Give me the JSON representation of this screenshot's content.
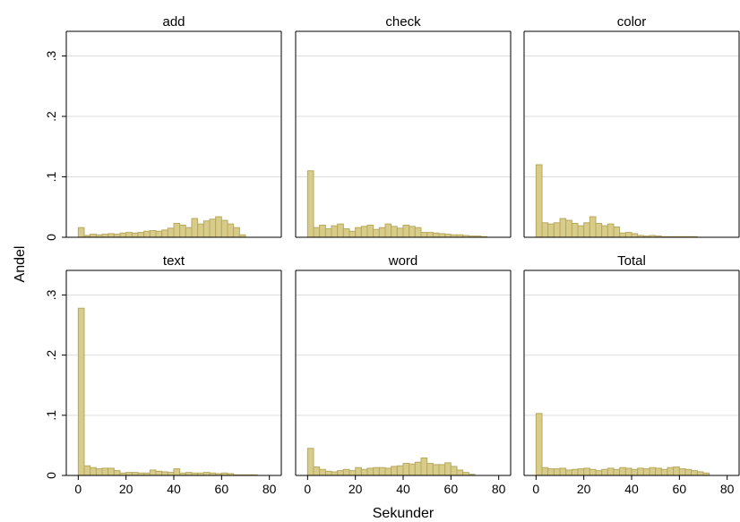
{
  "chart_data": {
    "type": "bar",
    "subtype": "histogram-small-multiples",
    "xlabel": "Sekunder",
    "ylabel": "Andel",
    "xlim": [
      -5,
      85
    ],
    "ylim": [
      0,
      0.32
    ],
    "x_ticks": [
      "0",
      "20",
      "40",
      "60",
      "80"
    ],
    "x_tick_values": [
      0,
      20,
      40,
      60,
      80
    ],
    "y_ticks": [
      "0",
      ".1",
      ".2",
      ".3"
    ],
    "y_tick_values": [
      0,
      0.1,
      0.2,
      0.3
    ],
    "bin_width": 2.5,
    "grid": true,
    "bar_color": "#d8cc8a",
    "bar_edge_color": "#b8a85e",
    "panels": [
      {
        "title": "add",
        "bins_start": 0,
        "values": [
          0.016,
          0.003,
          0.005,
          0.004,
          0.005,
          0.006,
          0.005,
          0.007,
          0.008,
          0.007,
          0.008,
          0.01,
          0.011,
          0.01,
          0.012,
          0.015,
          0.023,
          0.02,
          0.016,
          0.031,
          0.022,
          0.027,
          0.03,
          0.034,
          0.028,
          0.022,
          0.016,
          0.004
        ]
      },
      {
        "title": "check",
        "bins_start": 0,
        "values": [
          0.11,
          0.016,
          0.02,
          0.014,
          0.019,
          0.022,
          0.014,
          0.01,
          0.016,
          0.018,
          0.02,
          0.013,
          0.016,
          0.022,
          0.018,
          0.015,
          0.02,
          0.018,
          0.016,
          0.008,
          0.008,
          0.007,
          0.006,
          0.005,
          0.004,
          0.004,
          0.003,
          0.002,
          0.002,
          0.001
        ]
      },
      {
        "title": "color",
        "bins_start": 0,
        "values": [
          0.12,
          0.024,
          0.022,
          0.024,
          0.031,
          0.028,
          0.023,
          0.019,
          0.024,
          0.034,
          0.023,
          0.019,
          0.022,
          0.017,
          0.007,
          0.008,
          0.006,
          0.003,
          0.002,
          0.003,
          0.002,
          0.001,
          0.001,
          0.001,
          0.001,
          0.001,
          0.001
        ]
      },
      {
        "title": "text",
        "bins_start": 0,
        "values": [
          0.278,
          0.016,
          0.013,
          0.011,
          0.012,
          0.012,
          0.008,
          0.004,
          0.005,
          0.005,
          0.004,
          0.004,
          0.009,
          0.007,
          0.006,
          0.005,
          0.011,
          0.004,
          0.005,
          0.004,
          0.004,
          0.005,
          0.004,
          0.003,
          0.004,
          0.003,
          0.001,
          0.001,
          0.001,
          0.001
        ]
      },
      {
        "title": "word",
        "bins_start": 0,
        "values": [
          0.045,
          0.014,
          0.01,
          0.007,
          0.006,
          0.008,
          0.01,
          0.008,
          0.013,
          0.01,
          0.012,
          0.013,
          0.013,
          0.012,
          0.015,
          0.016,
          0.02,
          0.019,
          0.022,
          0.029,
          0.02,
          0.018,
          0.018,
          0.021,
          0.015,
          0.009,
          0.005,
          0.002
        ]
      },
      {
        "title": "Total",
        "bins_start": 0,
        "values": [
          0.103,
          0.013,
          0.011,
          0.011,
          0.012,
          0.009,
          0.01,
          0.011,
          0.012,
          0.01,
          0.008,
          0.01,
          0.012,
          0.01,
          0.013,
          0.012,
          0.01,
          0.012,
          0.011,
          0.013,
          0.012,
          0.01,
          0.013,
          0.014,
          0.011,
          0.01,
          0.008,
          0.006,
          0.004
        ]
      }
    ]
  }
}
